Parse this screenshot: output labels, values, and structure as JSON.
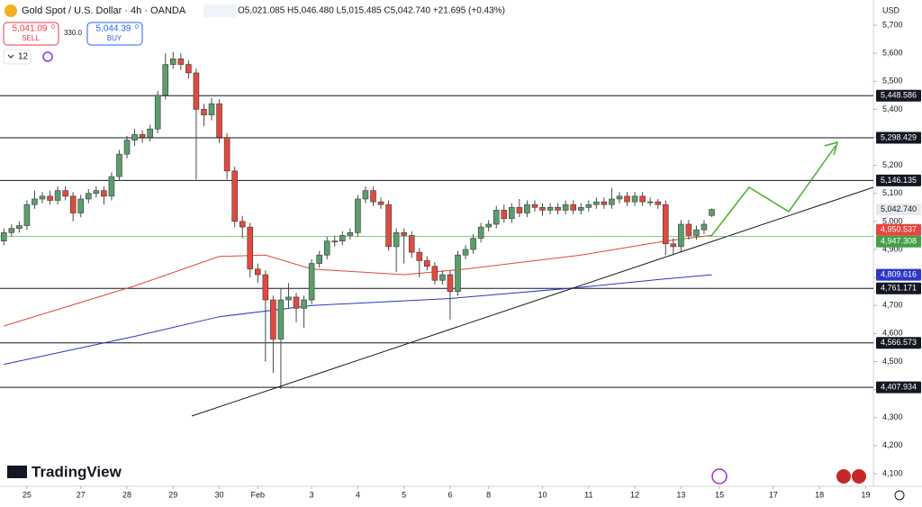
{
  "chart_data": {
    "type": "candlestick",
    "title": "Gold Spot / U.S. Dollar · 4h · OANDA",
    "ohlc": "O5,021.085 H5,046.480 L5,015.485 C5,042.740 +21.695 (+0.43%)",
    "sell_price": "5,041.09",
    "sell_sup": "0",
    "sell_label": "SELL",
    "spread": "330.0",
    "buy_price": "5,044.39",
    "buy_sup": "0",
    "buy_label": "BUY",
    "interval_count": "12",
    "currency": "USD",
    "brand": "TradingView",
    "up_color": "#5b9e6c",
    "down_color": "#e04a3f",
    "x": [
      0,
      1,
      2,
      3,
      4,
      5,
      6,
      7,
      8,
      9,
      10,
      11,
      12,
      13,
      14,
      15,
      16,
      17,
      18,
      19,
      20,
      21,
      22,
      23,
      24,
      25,
      26,
      27,
      28,
      29,
      30,
      31,
      32,
      33,
      34,
      35,
      36,
      37,
      38,
      39,
      40,
      41,
      42,
      43,
      44,
      45,
      46,
      47,
      48,
      49,
      50,
      51,
      52,
      53,
      54,
      55,
      56,
      57,
      58,
      59,
      60,
      61,
      62,
      63,
      64,
      65,
      66,
      67,
      68,
      69,
      70,
      71,
      72,
      73,
      74,
      75,
      76,
      77,
      78,
      79,
      80,
      81,
      82,
      83,
      84,
      85,
      86,
      87,
      88,
      89,
      90,
      91,
      92
    ],
    "open": [
      4930,
      4960,
      4975,
      4985,
      5060,
      5080,
      5090,
      5075,
      5110,
      5090,
      5030,
      5080,
      5100,
      5110,
      5090,
      5160,
      5240,
      5290,
      5310,
      5300,
      5330,
      5450,
      5560,
      5580,
      5560,
      5530,
      5400,
      5380,
      5420,
      5300,
      5180,
      5000,
      4980,
      4830,
      4810,
      4720,
      4580,
      4720,
      4730,
      4690,
      4720,
      4850,
      4880,
      4930,
      4930,
      4950,
      4960,
      5080,
      5110,
      5070,
      5060,
      4910,
      4960,
      4950,
      4890,
      4860,
      4840,
      4790,
      4810,
      4750,
      4880,
      4900,
      4940,
      4980,
      4990,
      5040,
      5010,
      5050,
      5030,
      5060,
      5050,
      5040,
      5050,
      5040,
      5060,
      5040,
      5050,
      5060,
      5070,
      5060,
      5080,
      5090,
      5070,
      5090,
      5070,
      5070,
      5060,
      4920,
      4910,
      4990,
      4950,
      4970,
      5021.085
    ],
    "high": [
      4975,
      4990,
      5000,
      5075,
      5110,
      5105,
      5110,
      5125,
      5125,
      5105,
      5095,
      5115,
      5125,
      5125,
      5175,
      5255,
      5305,
      5330,
      5325,
      5345,
      5465,
      5600,
      5605,
      5600,
      5575,
      5545,
      5420,
      5440,
      5435,
      5315,
      5195,
      5020,
      4995,
      4850,
      4825,
      4735,
      4760,
      4780,
      4745,
      4735,
      4865,
      4895,
      4945,
      4950,
      4965,
      4975,
      5095,
      5125,
      5125,
      5085,
      5075,
      4975,
      4975,
      4965,
      4905,
      4875,
      4855,
      4825,
      4825,
      4895,
      4915,
      4955,
      4995,
      5005,
      5055,
      5060,
      5065,
      5080,
      5075,
      5075,
      5065,
      5065,
      5065,
      5075,
      5075,
      5065,
      5075,
      5085,
      5085,
      5120,
      5105,
      5105,
      5105,
      5105,
      5085,
      5080,
      5075,
      4940,
      5005,
      5005,
      4985,
      5005,
      5046.48
    ],
    "low": [
      4915,
      4945,
      4960,
      4970,
      5045,
      5065,
      5060,
      5060,
      5075,
      5000,
      5015,
      5065,
      5085,
      5060,
      5075,
      5145,
      5225,
      5270,
      5280,
      5285,
      5315,
      5435,
      5545,
      5540,
      5510,
      5150,
      5340,
      5360,
      5280,
      5150,
      4980,
      4940,
      4800,
      4780,
      4500,
      4460,
      4402,
      4690,
      4640,
      4620,
      4705,
      4835,
      4865,
      4910,
      4915,
      4935,
      4945,
      5065,
      5055,
      5045,
      4895,
      4820,
      4850,
      4870,
      4800,
      4825,
      4775,
      4775,
      4650,
      4735,
      4865,
      4885,
      4925,
      4965,
      4975,
      4995,
      4995,
      5015,
      5015,
      5035,
      5020,
      5025,
      5025,
      5025,
      5025,
      5025,
      5035,
      5045,
      5045,
      5045,
      5065,
      5055,
      5055,
      5055,
      5055,
      5045,
      4880,
      4880,
      4890,
      4935,
      4935,
      4955,
      5015.485
    ],
    "close": [
      4960,
      4975,
      4985,
      5060,
      5080,
      5090,
      5075,
      5110,
      5090,
      5030,
      5080,
      5100,
      5110,
      5090,
      5160,
      5240,
      5290,
      5310,
      5300,
      5330,
      5450,
      5560,
      5580,
      5560,
      5530,
      5400,
      5380,
      5420,
      5300,
      5180,
      5000,
      4980,
      4830,
      4810,
      4720,
      4580,
      4720,
      4730,
      4690,
      4720,
      4850,
      4880,
      4930,
      4930,
      4950,
      4960,
      5080,
      5110,
      5070,
      5060,
      4910,
      4960,
      4950,
      4890,
      4860,
      4840,
      4790,
      4810,
      4750,
      4880,
      4900,
      4940,
      4980,
      4990,
      5040,
      5010,
      5050,
      5030,
      5060,
      5050,
      5040,
      5050,
      5040,
      5060,
      5040,
      5050,
      5060,
      5070,
      5060,
      5080,
      5090,
      5070,
      5090,
      5070,
      5070,
      5060,
      4920,
      4910,
      4990,
      4950,
      4970,
      4990,
      5042.74
    ],
    "series": [
      {
        "color": "#e5463d",
        "x": [
          0,
          17,
          28,
          34,
          40,
          52,
          60,
          75,
          86,
          92
        ],
        "values": [
          4627,
          4770,
          4875,
          4880,
          4830,
          4810,
          4830,
          4880,
          4930,
          4950.537
        ]
      },
      {
        "color": "#2c36c9",
        "x": [
          0,
          17,
          28,
          40,
          58,
          75,
          86,
          92
        ],
        "values": [
          4490,
          4590,
          4660,
          4700,
          4725,
          4765,
          4795,
          4809.616
        ]
      }
    ],
    "levels": [
      {
        "value": 5448.586,
        "label": "5,448.586"
      },
      {
        "value": 5298.429,
        "label": "5,298.429"
      },
      {
        "value": 5146.135,
        "label": "5,146.135"
      },
      {
        "value": 4761.171,
        "label": "4,761.171"
      },
      {
        "value": 4566.573,
        "label": "4,566.573"
      },
      {
        "value": 4407.934,
        "label": "4,407.934"
      }
    ],
    "price_tags": [
      {
        "value": 5042.74,
        "label": "5,042.740",
        "color": "#e8eaee"
      },
      {
        "value": 4950.537,
        "label": "4,950.537",
        "color": "#e5463d"
      },
      {
        "value": 4947.308,
        "label": "4,947.308",
        "color": "#43a047"
      },
      {
        "value": 4809.616,
        "label": "4,809.616",
        "color": "#2c36c9"
      }
    ],
    "xlim": [
      -0.5,
      113
    ],
    "xticks": [
      {
        "value": 3,
        "label": "25"
      },
      {
        "value": 10,
        "label": "27"
      },
      {
        "value": 16,
        "label": "28"
      },
      {
        "value": 22,
        "label": "29"
      },
      {
        "value": 28,
        "label": "30"
      },
      {
        "value": 33,
        "label": "Feb"
      },
      {
        "value": 40,
        "label": "3"
      },
      {
        "value": 46,
        "label": "4"
      },
      {
        "value": 52,
        "label": "5"
      },
      {
        "value": 58,
        "label": "6"
      },
      {
        "value": 63,
        "label": "8"
      },
      {
        "value": 70,
        "label": "10"
      },
      {
        "value": 76,
        "label": "11"
      },
      {
        "value": 82,
        "label": "12"
      },
      {
        "value": 88,
        "label": "13"
      },
      {
        "value": 93,
        "label": "15"
      },
      {
        "value": 100,
        "label": "17"
      },
      {
        "value": 106,
        "label": "18"
      },
      {
        "value": 112,
        "label": "19"
      }
    ],
    "ylim": [
      4055,
      5790
    ],
    "yticks": [
      {
        "value": 4100,
        "label": "4,100"
      },
      {
        "value": 4200,
        "label": "4,200"
      },
      {
        "value": 4300,
        "label": "4,300"
      },
      {
        "value": 4400,
        "label": "4,400"
      },
      {
        "value": 4500,
        "label": "4,500"
      },
      {
        "value": 4600,
        "label": "4,600"
      },
      {
        "value": 4700,
        "label": "4,700"
      },
      {
        "value": 4800,
        "label": "4,800"
      },
      {
        "value": 4900,
        "label": "4,900"
      },
      {
        "value": 5000,
        "label": "5,000"
      },
      {
        "value": 5100,
        "label": "5,100"
      },
      {
        "value": 5200,
        "label": "5,200"
      },
      {
        "value": 5300,
        "label": "5,300"
      },
      {
        "value": 5400,
        "label": "5,400"
      },
      {
        "value": 5500,
        "label": "5,500"
      },
      {
        "value": 5600,
        "label": "5,600"
      },
      {
        "value": 5700,
        "label": "5,700"
      }
    ]
  }
}
